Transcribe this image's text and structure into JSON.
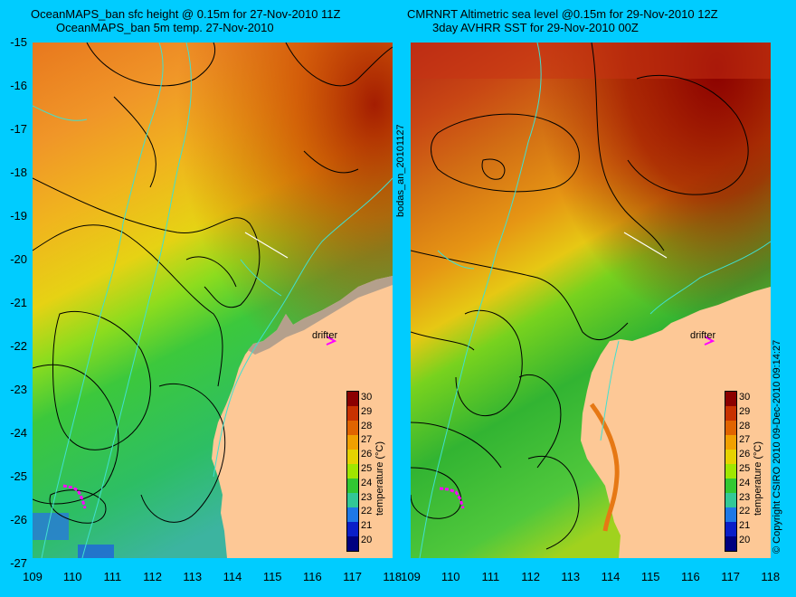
{
  "left_panel": {
    "title_line1": "OceanMAPS_ban sfc height @ 0.15m for 27-Nov-2010 11Z",
    "title_line2": "OceanMAPS_ban 5m temp. 27-Nov-2010",
    "drifter_label": "drifter"
  },
  "right_panel": {
    "title_line1": "CMRNRT Altimetric sea level  @0.15m  for 29-Nov-2010 12Z",
    "title_line2": "3day AVHRR SST for 29-Nov-2010 00Z",
    "drifter_label": "drifter",
    "side_label": "bodas_an_20101127"
  },
  "copyright": "© Copyright CSIRO 2010  09-Dec-2010 09:14:27",
  "axes": {
    "lat_ticks": [
      "-15",
      "-16",
      "-17",
      "-18",
      "-19",
      "-20",
      "-21",
      "-22",
      "-23",
      "-24",
      "-25",
      "-26",
      "-27"
    ],
    "lon_ticks": [
      "109",
      "110",
      "111",
      "112",
      "113",
      "114",
      "115",
      "116",
      "117",
      "118"
    ]
  },
  "colorbar": {
    "label": "temperature (°C)",
    "ticks": [
      "30",
      "29",
      "28",
      "27",
      "26",
      "25",
      "24",
      "23",
      "22",
      "21",
      "20"
    ],
    "colors": [
      "#8b0000",
      "#c83200",
      "#e06400",
      "#f0a000",
      "#e6d200",
      "#a0e600",
      "#32c832",
      "#32c896",
      "#1e78e6",
      "#0a1ec8",
      "#000080"
    ]
  },
  "colors": {
    "background": "#00ccff",
    "land": "#fdc896",
    "coast_shelf": "#b4a08c",
    "bathymetry_contour": "#40e0d0",
    "drifter": "#ff00ff"
  }
}
